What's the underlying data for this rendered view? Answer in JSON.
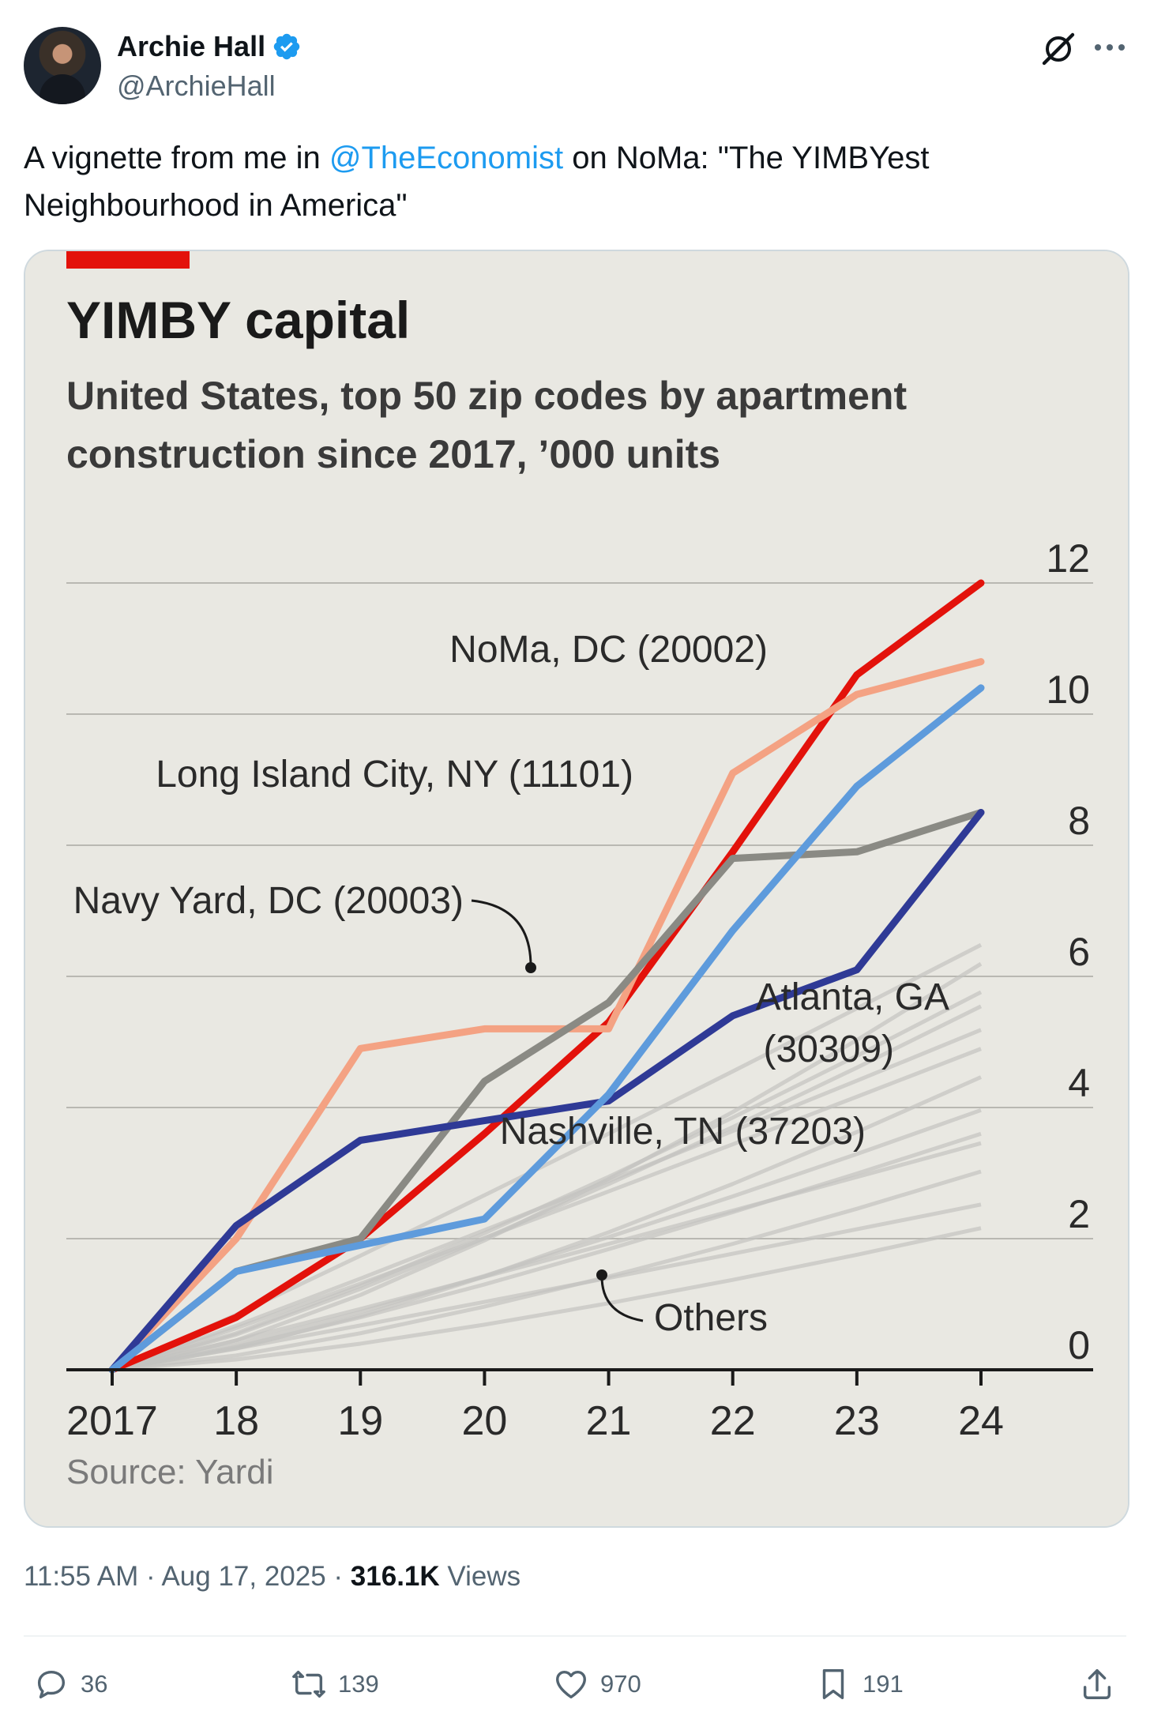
{
  "author": {
    "name": "Archie Hall",
    "handle": "@ArchieHall"
  },
  "tweet": {
    "text_before": "A vignette from me in ",
    "mention": "@TheEconomist",
    "text_after": " on NoMa: \"The YIMBYest Neighbourhood in America\""
  },
  "chart_data": {
    "type": "line",
    "title": "YIMBY capital",
    "subtitle": "United States, top 50 zip codes by apartment construction since 2017, ’000 units",
    "source": "Source: Yardi",
    "x": [
      2017,
      2018,
      2019,
      2020,
      2021,
      2022,
      2023,
      2024
    ],
    "x_tick_labels": [
      "2017",
      "18",
      "19",
      "20",
      "21",
      "22",
      "23",
      "24"
    ],
    "ylim": [
      0,
      12
    ],
    "y_ticks": [
      "0",
      "2",
      "4",
      "6",
      "8",
      "10",
      "12"
    ],
    "series": [
      {
        "name": "NoMa, DC (20002)",
        "color": "#e3120b",
        "values": [
          0,
          0.8,
          2,
          3.6,
          5.3,
          7.9,
          10.6,
          12
        ]
      },
      {
        "name": "Long Island City, NY (11101)",
        "color": "#f4a283",
        "values": [
          0,
          2,
          4.9,
          5.2,
          5.2,
          9.1,
          10.3,
          10.8
        ]
      },
      {
        "name": "Navy Yard, DC (20003)",
        "color": "#8a8a84",
        "values": [
          0,
          1.5,
          2,
          4.4,
          5.6,
          7.8,
          7.9,
          8.5
        ]
      },
      {
        "name": "Atlanta, GA (30309)",
        "color": "#2f3a96",
        "values": [
          0,
          2.2,
          3.5,
          3.8,
          4.1,
          5.4,
          6.1,
          8.5
        ]
      },
      {
        "name": "Nashville, TN (37203)",
        "color": "#5e9bdc",
        "values": [
          0,
          1.5,
          1.9,
          2.3,
          4.2,
          6.7,
          8.9,
          10.4
        ]
      }
    ],
    "others_label": "Others",
    "others_color": "#c3c3c0"
  },
  "meta": {
    "time": "11:55 AM · Aug 17, 2025 · ",
    "views_count": "316.1K",
    "views_label": " Views"
  },
  "actions": {
    "replies": "36",
    "reposts": "139",
    "likes": "970",
    "bookmarks": "191"
  },
  "colors": {
    "accent": "#1d9bf0",
    "verified": "#1d9bf0",
    "economist_red": "#e3120b"
  }
}
